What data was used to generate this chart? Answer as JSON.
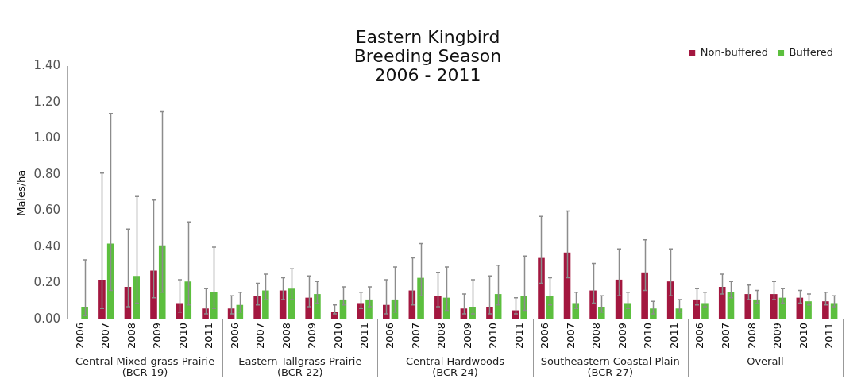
{
  "chart_data": {
    "type": "bar",
    "title": "Eastern Kingbird\nBreeding Season\n2006 - 2011",
    "ylabel": "Males/ha",
    "categories": [
      "2006",
      "2007",
      "2008",
      "2009",
      "2010",
      "2011",
      "2006",
      "2007",
      "2008",
      "2009",
      "2010",
      "2011",
      "2006",
      "2007",
      "2008",
      "2009",
      "2010",
      "2011",
      "2006",
      "2007",
      "2008",
      "2009",
      "2010",
      "2011",
      "2006",
      "2007",
      "2008",
      "2009",
      "2010",
      "2011"
    ],
    "annotations": [
      "Central Mixed-grass Prairie\n(BCR 19)",
      "Eastern Tallgrass Prairie\n(BCR 22)",
      "Central Hardwoods\n(BCR 24)",
      "Southeastern Coastal Plain\n(BCR 27)",
      "Overall"
    ],
    "series": [
      {
        "name": "Non-buffered",
        "color": "#a3173f",
        "values": [
          null,
          0.22,
          0.18,
          0.27,
          0.09,
          0.06,
          0.06,
          0.13,
          0.16,
          0.12,
          0.04,
          0.09,
          0.08,
          0.16,
          0.13,
          0.06,
          0.07,
          0.05,
          0.34,
          0.37,
          0.16,
          0.22,
          0.26,
          0.21,
          0.11,
          0.18,
          0.14,
          0.14,
          0.12,
          0.1
        ],
        "errors": [
          null,
          [
            0.06,
            0.81
          ],
          [
            0.07,
            0.5
          ],
          [
            0.12,
            0.66
          ],
          [
            0.04,
            0.22
          ],
          [
            0.03,
            0.17
          ],
          [
            0.03,
            0.13
          ],
          [
            0.08,
            0.2
          ],
          [
            0.11,
            0.23
          ],
          [
            0.07,
            0.24
          ],
          [
            0.03,
            0.08
          ],
          [
            0.06,
            0.15
          ],
          [
            0.03,
            0.22
          ],
          [
            0.08,
            0.34
          ],
          [
            0.07,
            0.26
          ],
          [
            0.03,
            0.14
          ],
          [
            0.03,
            0.24
          ],
          [
            0.03,
            0.12
          ],
          [
            0.2,
            0.57
          ],
          [
            0.23,
            0.6
          ],
          [
            0.09,
            0.31
          ],
          [
            0.13,
            0.39
          ],
          [
            0.16,
            0.44
          ],
          [
            0.13,
            0.39
          ],
          [
            0.08,
            0.17
          ],
          [
            0.14,
            0.25
          ],
          [
            0.11,
            0.19
          ],
          [
            0.11,
            0.21
          ],
          [
            0.09,
            0.16
          ],
          [
            0.08,
            0.15
          ]
        ]
      },
      {
        "name": "Buffered",
        "color": "#5cbf3e",
        "values": [
          0.07,
          0.42,
          0.24,
          0.41,
          0.21,
          0.15,
          0.08,
          0.16,
          0.17,
          0.14,
          0.11,
          0.11,
          0.11,
          0.23,
          0.12,
          0.07,
          0.14,
          0.13,
          0.13,
          0.09,
          0.07,
          0.09,
          0.06,
          0.06,
          0.09,
          0.15,
          0.11,
          0.12,
          0.1,
          0.09
        ],
        "errors": [
          [
            0.02,
            0.33
          ],
          [
            0.16,
            1.14
          ],
          [
            0.09,
            0.68
          ],
          [
            0.15,
            1.15
          ],
          [
            0.08,
            0.54
          ],
          [
            0.06,
            0.4
          ],
          [
            0.04,
            0.15
          ],
          [
            0.11,
            0.25
          ],
          [
            0.11,
            0.28
          ],
          [
            0.09,
            0.21
          ],
          [
            0.08,
            0.18
          ],
          [
            0.07,
            0.18
          ],
          [
            0.04,
            0.29
          ],
          [
            0.13,
            0.42
          ],
          [
            0.05,
            0.29
          ],
          [
            0.03,
            0.22
          ],
          [
            0.08,
            0.3
          ],
          [
            0.05,
            0.35
          ],
          [
            0.08,
            0.23
          ],
          [
            0.06,
            0.15
          ],
          [
            0.04,
            0.13
          ],
          [
            0.06,
            0.15
          ],
          [
            0.03,
            0.1
          ],
          [
            0.04,
            0.11
          ],
          [
            0.07,
            0.15
          ],
          [
            0.12,
            0.21
          ],
          [
            0.09,
            0.16
          ],
          [
            0.09,
            0.17
          ],
          [
            0.08,
            0.14
          ],
          [
            0.07,
            0.13
          ]
        ]
      }
    ],
    "ylim": [
      0,
      1.4
    ],
    "yticks": [
      {
        "value": 0,
        "label": "0.00"
      },
      {
        "value": 0.2,
        "label": "0.20"
      },
      {
        "value": 0.4,
        "label": "0.40"
      },
      {
        "value": 0.6,
        "label": "0.60"
      },
      {
        "value": 0.8,
        "label": "0.80"
      },
      {
        "value": 1,
        "label": "1.00"
      },
      {
        "value": 1.2,
        "label": "1.20"
      },
      {
        "value": 1.4,
        "label": "1.40"
      }
    ],
    "grid": false,
    "legend": "top right"
  }
}
